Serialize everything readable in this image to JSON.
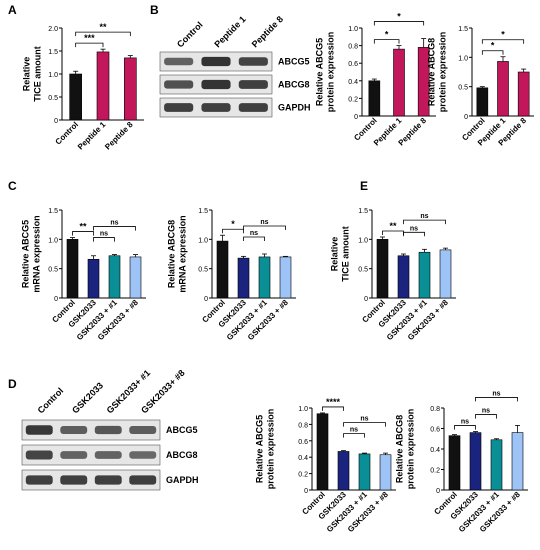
{
  "colors": {
    "control": "#111111",
    "peptide": "#c2185b",
    "gsk": "#1a237e",
    "p1": "#0b8f96",
    "p8": "#9ec3f7",
    "blot_bg": "#e6e6e6",
    "band": "#2c2c2c",
    "line": "#000000"
  },
  "panels": [
    {
      "letter": "A"
    },
    {
      "letter": "B"
    },
    {
      "letter": "C"
    },
    {
      "letter": "E"
    },
    {
      "letter": "D"
    }
  ],
  "blots": [
    {
      "panel": "B",
      "lanes": [
        "Control",
        "Peptide 1",
        "Peptide 8"
      ],
      "rows": [
        {
          "label": "ABCG5",
          "intensity": [
            0.55,
            0.95,
            0.8
          ]
        },
        {
          "label": "ABCG8",
          "intensity": [
            0.7,
            0.95,
            0.85
          ]
        },
        {
          "label": "GAPDH",
          "intensity": [
            0.85,
            0.85,
            0.85
          ]
        }
      ]
    },
    {
      "panel": "D",
      "lanes": [
        "Control",
        "GSK2033",
        "GSK2033+ #1",
        "GSK2033+ #8"
      ],
      "rows": [
        {
          "label": "ABCG5",
          "intensity": [
            0.9,
            0.6,
            0.65,
            0.6
          ]
        },
        {
          "label": "ABCG8",
          "intensity": [
            0.8,
            0.55,
            0.55,
            0.5
          ]
        },
        {
          "label": "GAPDH",
          "intensity": [
            0.85,
            0.85,
            0.85,
            0.85
          ]
        }
      ]
    }
  ],
  "chart_data": [
    {
      "id": "A-tice",
      "type": "bar",
      "categories": [
        "Control",
        "Peptide 1",
        "Peptide 8"
      ],
      "values": [
        1.0,
        1.48,
        1.35
      ],
      "errors": [
        0.06,
        0.06,
        0.05
      ],
      "ylabel": [
        "Relative",
        "TICE amount"
      ],
      "ylim": [
        0,
        2
      ],
      "yticks": [
        0,
        0.5,
        1.0,
        1.5,
        2.0
      ],
      "brackets": [
        {
          "from": 0,
          "to": 1,
          "label": "***"
        },
        {
          "from": 0,
          "to": 2,
          "label": "**"
        }
      ]
    },
    {
      "id": "B-abcg5",
      "type": "bar",
      "categories": [
        "Control",
        "Peptide 1",
        "Peptide 8"
      ],
      "values": [
        0.4,
        0.76,
        0.78
      ],
      "errors": [
        0.02,
        0.04,
        0.1
      ],
      "ylabel": [
        "Relative ABCG5",
        "protein expression"
      ],
      "ylim": [
        0,
        1.0
      ],
      "yticks": [
        0,
        0.2,
        0.4,
        0.6,
        0.8,
        1.0
      ],
      "brackets": [
        {
          "from": 0,
          "to": 1,
          "label": "*"
        },
        {
          "from": 0,
          "to": 2,
          "label": "*"
        }
      ]
    },
    {
      "id": "B-abcg8",
      "type": "bar",
      "categories": [
        "Control",
        "Peptide 1",
        "Peptide 8"
      ],
      "values": [
        0.48,
        0.93,
        0.75
      ],
      "errors": [
        0.02,
        0.08,
        0.05
      ],
      "ylabel": [
        "Relative ABCG8",
        "protein expression"
      ],
      "ylim": [
        0,
        1.5
      ],
      "yticks": [
        0,
        0.5,
        1.0,
        1.5
      ],
      "brackets": [
        {
          "from": 0,
          "to": 1,
          "label": "*"
        },
        {
          "from": 0,
          "to": 2,
          "label": "*"
        }
      ]
    },
    {
      "id": "C-abcg5-mrna",
      "type": "bar",
      "categories": [
        "Control",
        "GSK2033",
        "GSK2033 + #1",
        "GSK2033 + #8"
      ],
      "values": [
        1.0,
        0.66,
        0.72,
        0.7
      ],
      "errors": [
        0.03,
        0.06,
        0.02,
        0.04
      ],
      "ylabel": [
        "Relative ABCG5",
        "mRNA expression"
      ],
      "ylim": [
        0,
        1.5
      ],
      "yticks": [
        0,
        0.5,
        1.0,
        1.5
      ],
      "brackets": [
        {
          "from": 0,
          "to": 1,
          "label": "**"
        },
        {
          "from": 1,
          "to": 2,
          "label": "ns"
        },
        {
          "from": 1,
          "to": 3,
          "label": "ns"
        }
      ]
    },
    {
      "id": "C-abcg8-mrna",
      "type": "bar",
      "categories": [
        "Control",
        "GSK2033",
        "GSK2033 + #1",
        "GSK2033 + #8"
      ],
      "values": [
        0.97,
        0.68,
        0.7,
        0.7
      ],
      "errors": [
        0.1,
        0.03,
        0.05,
        0.01
      ],
      "ylabel": [
        "Relative ABCG8",
        "mRNA expression"
      ],
      "ylim": [
        0,
        1.5
      ],
      "yticks": [
        0,
        0.5,
        1.0,
        1.5
      ],
      "brackets": [
        {
          "from": 0,
          "to": 1,
          "label": "*"
        },
        {
          "from": 1,
          "to": 2,
          "label": "ns"
        },
        {
          "from": 1,
          "to": 3,
          "label": "ns"
        }
      ]
    },
    {
      "id": "E-tice",
      "type": "bar",
      "categories": [
        "Control",
        "GSK2033",
        "GSK2033 + #1",
        "GSK2033 + #8"
      ],
      "values": [
        1.0,
        0.72,
        0.78,
        0.82
      ],
      "errors": [
        0.04,
        0.03,
        0.05,
        0.03
      ],
      "ylabel": [
        "Relative",
        "TICE amount"
      ],
      "ylim": [
        0,
        1.5
      ],
      "yticks": [
        0,
        0.5,
        1.0,
        1.5
      ],
      "brackets": [
        {
          "from": 0,
          "to": 1,
          "label": "**"
        },
        {
          "from": 1,
          "to": 2,
          "label": "ns"
        },
        {
          "from": 1,
          "to": 3,
          "label": "ns"
        }
      ]
    },
    {
      "id": "D-abcg5",
      "type": "bar",
      "categories": [
        "Control",
        "GSK2033",
        "GSK2033 + #1",
        "GSK2033 + #8"
      ],
      "values": [
        0.93,
        0.47,
        0.44,
        0.43
      ],
      "errors": [
        0.01,
        0.01,
        0.01,
        0.02
      ],
      "ylabel": [
        "Relative ABCG5",
        "protein expression"
      ],
      "ylim": [
        0,
        1.0
      ],
      "yticks": [
        0,
        0.2,
        0.4,
        0.6,
        0.8,
        1.0
      ],
      "brackets": [
        {
          "from": 0,
          "to": 1,
          "label": "****"
        },
        {
          "from": 1,
          "to": 2,
          "label": "ns"
        },
        {
          "from": 1,
          "to": 3,
          "label": "ns"
        }
      ]
    },
    {
      "id": "D-abcg8",
      "type": "bar",
      "categories": [
        "Control",
        "GSK2033",
        "GSK2033 + #1",
        "GSK2033 + #8"
      ],
      "values": [
        0.53,
        0.56,
        0.49,
        0.56
      ],
      "errors": [
        0.01,
        0.01,
        0.01,
        0.07
      ],
      "ylabel": [
        "Relative ABCG8",
        "protein expression"
      ],
      "ylim": [
        0,
        0.8
      ],
      "yticks": [
        0,
        0.2,
        0.4,
        0.6,
        0.8
      ],
      "brackets": [
        {
          "from": 0,
          "to": 1,
          "label": "ns"
        },
        {
          "from": 1,
          "to": 2,
          "label": "ns"
        },
        {
          "from": 1,
          "to": 3,
          "label": "ns"
        }
      ]
    }
  ]
}
